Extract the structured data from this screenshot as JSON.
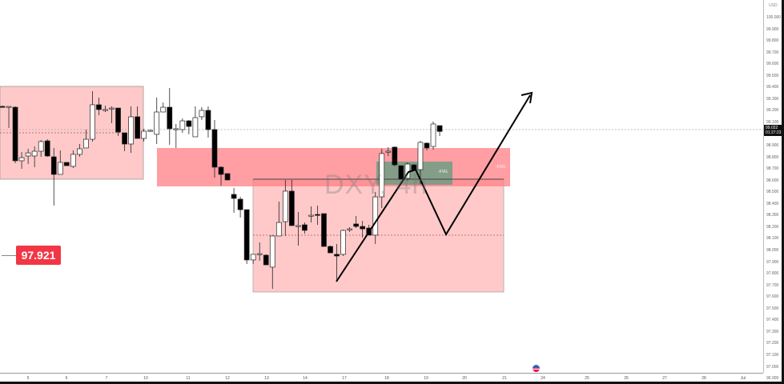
{
  "symbol": {
    "watermark": "DXY, 4h",
    "currency": "USD"
  },
  "last_price": {
    "value": "99.022",
    "countdown": "01:27:23"
  },
  "price_label": {
    "value": "97.921",
    "color": "#f23645"
  },
  "drawings": {
    "fvg_label_red": "-FVG",
    "fvg_label_green": "-FVG"
  },
  "price_axis": [
    "100.000",
    "99.900",
    "99.800",
    "99.700",
    "99.600",
    "99.500",
    "99.400",
    "99.300",
    "99.200",
    "99.100",
    "99.000",
    "98.900",
    "98.800",
    "98.700",
    "98.600",
    "98.500",
    "98.400",
    "98.300",
    "98.200",
    "98.100",
    "98.000",
    "97.900",
    "97.800",
    "97.700",
    "97.600",
    "97.500",
    "97.400",
    "97.300",
    "97.200",
    "97.100",
    "97.000",
    "96.900"
  ],
  "time_axis": [
    "5",
    "6",
    "7",
    "10",
    "11",
    "12",
    "13",
    "14",
    "17",
    "18",
    "19",
    "20",
    "21",
    "24",
    "25",
    "26",
    "27",
    "28",
    "Jul"
  ],
  "colors": {
    "up": "#ffffff",
    "down": "#000000",
    "zone_light": "#ffc9c9",
    "zone_red": "#ff8a8f",
    "fvg_green": "#6f9c84",
    "accent": "#f23645"
  },
  "chart_data": {
    "type": "candlestick",
    "symbol": "DXY",
    "timeframe": "4h",
    "ylim": [
      96.9,
      100.0
    ],
    "candles_ohlc": [
      [
        99.237,
        99.244,
        99.23,
        99.23
      ],
      [
        99.23,
        99.237,
        99.052,
        99.237
      ],
      [
        99.23,
        99.237,
        98.749,
        98.77
      ],
      [
        98.77,
        98.845,
        98.701,
        98.797
      ],
      [
        98.811,
        98.873,
        98.742,
        98.838
      ],
      [
        98.811,
        98.893,
        98.715,
        98.852
      ],
      [
        98.852,
        98.948,
        98.804,
        98.935
      ],
      [
        98.941,
        98.955,
        98.804,
        98.811
      ],
      [
        98.804,
        98.88,
        98.385,
        98.653
      ],
      [
        98.653,
        98.859,
        98.653,
        98.756
      ],
      [
        98.756,
        98.756,
        98.728,
        98.728
      ],
      [
        98.722,
        98.859,
        98.708,
        98.825
      ],
      [
        98.825,
        98.914,
        98.804,
        98.873
      ],
      [
        98.88,
        99.038,
        98.88,
        98.955
      ],
      [
        98.955,
        99.368,
        98.935,
        99.251
      ],
      [
        99.251,
        99.313,
        99.161,
        99.21
      ],
      [
        99.21,
        99.244,
        99.189,
        99.21
      ],
      [
        99.22,
        99.237,
        99.093,
        99.223
      ],
      [
        99.223,
        99.223,
        98.983,
        99.017
      ],
      [
        99.01,
        99.01,
        98.852,
        98.914
      ],
      [
        98.914,
        99.237,
        98.838,
        99.148
      ],
      [
        99.148,
        99.237,
        98.962,
        98.962
      ],
      [
        98.962,
        99.045,
        98.935,
        99.024
      ],
      [
        99.031,
        99.038,
        99.024,
        99.031
      ],
      [
        98.997,
        99.313,
        98.914,
        99.189
      ],
      [
        99.189,
        99.271,
        99.189,
        99.23
      ],
      [
        99.23,
        99.395,
        98.907,
        99.045
      ],
      [
        99.045,
        99.086,
        98.88,
        99.045
      ],
      [
        99.038,
        99.134,
        99.01,
        99.113
      ],
      [
        99.113,
        99.12,
        98.997,
        99.065
      ],
      [
        98.976,
        99.237,
        98.976,
        99.141
      ],
      [
        99.148,
        99.23,
        99.12,
        99.203
      ],
      [
        99.203,
        99.237,
        98.969,
        99.038
      ],
      [
        99.038,
        99.12,
        98.625,
        98.715
      ],
      [
        98.715,
        98.722,
        98.557,
        98.653
      ],
      [
        98.66,
        98.66,
        98.605,
        98.605
      ],
      [
        98.481,
        98.536,
        98.323,
        98.447
      ],
      [
        98.44,
        98.46,
        98.282,
        98.35
      ],
      [
        98.35,
        98.35,
        97.883,
        97.918
      ],
      [
        97.918,
        97.966,
        97.883,
        97.966
      ],
      [
        97.966,
        98.069,
        97.911,
        97.972
      ],
      [
        97.959,
        97.966,
        97.876,
        97.876
      ],
      [
        97.856,
        98.124,
        97.67,
        98.124
      ],
      [
        98.124,
        98.419,
        98.124,
        98.24
      ],
      [
        98.247,
        98.605,
        98.124,
        98.509
      ],
      [
        98.509,
        98.605,
        98.213,
        98.213
      ],
      [
        98.213,
        98.33,
        98.041,
        98.213
      ],
      [
        98.22,
        98.24,
        98.144,
        98.172
      ],
      [
        98.295,
        98.378,
        98.24,
        98.302
      ],
      [
        98.309,
        98.385,
        98.22,
        98.302
      ],
      [
        98.316,
        98.316,
        98.034,
        98.034
      ],
      [
        98.034,
        98.041,
        97.979,
        97.979
      ],
      [
        97.966,
        98.055,
        97.732,
        97.952
      ],
      [
        97.966,
        98.179,
        97.952,
        98.172
      ],
      [
        98.179,
        98.199,
        98.158,
        98.185
      ],
      [
        98.227,
        98.295,
        98.192,
        98.206
      ],
      [
        98.206,
        98.254,
        98.11,
        98.185
      ],
      [
        98.192,
        98.22,
        98.131,
        98.131
      ],
      [
        98.131,
        98.502,
        98.055,
        98.46
      ],
      [
        98.46,
        98.873,
        98.364,
        98.832
      ],
      [
        98.845,
        98.887,
        98.811,
        98.852
      ],
      [
        98.887,
        98.893,
        98.722,
        98.735
      ],
      [
        98.728,
        98.728,
        98.612,
        98.612
      ],
      [
        98.619,
        98.756,
        98.598,
        98.742
      ],
      [
        98.735,
        98.742,
        98.694,
        98.694
      ],
      [
        98.694,
        98.941,
        98.57,
        98.928
      ],
      [
        98.921,
        98.928,
        98.859,
        98.88
      ],
      [
        98.893,
        99.107,
        98.866,
        99.086
      ],
      [
        99.072,
        99.072,
        98.983,
        99.022
      ]
    ]
  }
}
